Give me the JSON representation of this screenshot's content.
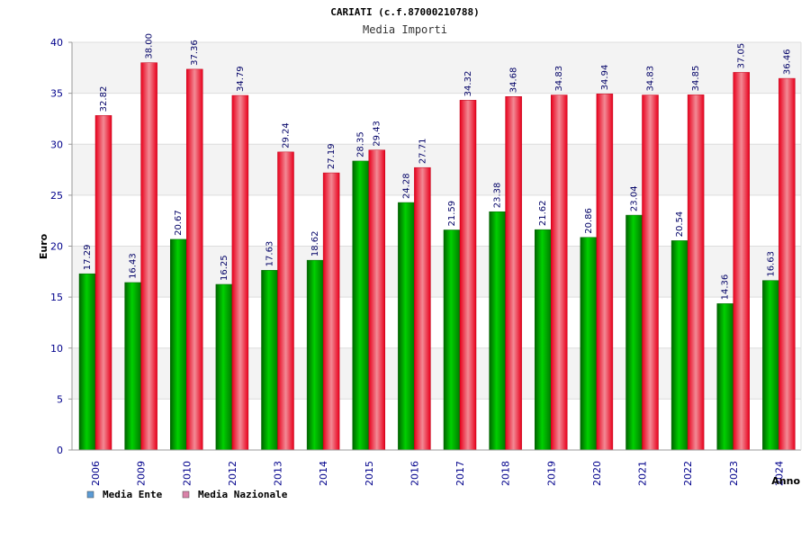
{
  "chart_data": {
    "type": "bar",
    "title": "CARIATI (c.f.87000210788)",
    "subtitle": "Media Importi",
    "xlabel": "Anno",
    "ylabel": "Euro",
    "ylim": [
      0,
      40
    ],
    "yticks": [
      0,
      5,
      10,
      15,
      20,
      25,
      30,
      35,
      40
    ],
    "categories": [
      "2006",
      "2009",
      "2010",
      "2012",
      "2013",
      "2014",
      "2015",
      "2016",
      "2017",
      "2018",
      "2019",
      "2020",
      "2021",
      "2022",
      "2023",
      "2024"
    ],
    "series": [
      {
        "name": "Media Ente",
        "values": [
          17.29,
          16.43,
          20.67,
          16.25,
          17.63,
          18.62,
          28.35,
          24.28,
          21.59,
          23.38,
          21.62,
          20.86,
          23.04,
          20.54,
          14.36,
          16.63
        ],
        "bar_color": "#00b000",
        "legend_color": "#5b9bd5"
      },
      {
        "name": "Media Nazionale",
        "values": [
          32.82,
          38.0,
          37.36,
          34.79,
          29.24,
          27.19,
          29.43,
          27.71,
          34.32,
          34.68,
          34.83,
          34.94,
          34.83,
          34.85,
          37.05,
          36.46
        ],
        "bar_color": "#e8001c",
        "legend_color": "#d982a8"
      }
    ],
    "grid": true,
    "legend_position": "bottom-left"
  }
}
